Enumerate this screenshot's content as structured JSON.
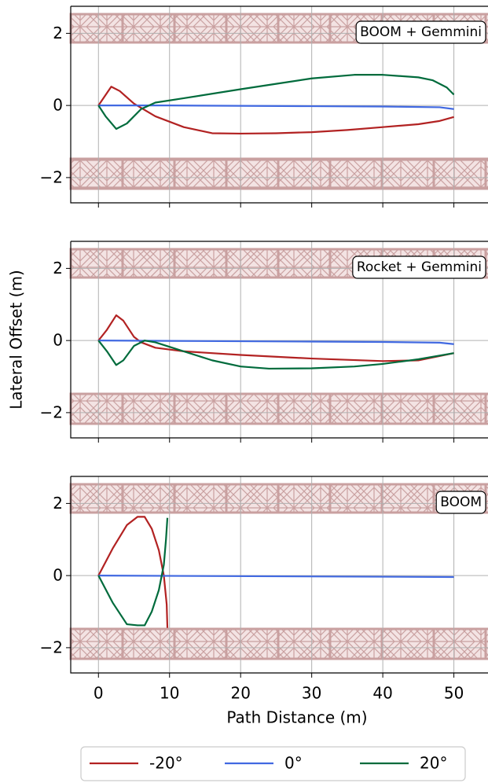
{
  "chart_data": [
    {
      "type": "line",
      "annotation": "BOOM + Gemmini",
      "xlim": [
        -3.9,
        54.8
      ],
      "ylim": [
        -2.7,
        2.75
      ],
      "xticks": [
        0,
        10,
        20,
        30,
        40,
        50
      ],
      "yticks": [
        {
          "value": -2,
          "label": "−2"
        },
        0,
        2
      ],
      "grid": true,
      "series": [
        {
          "name": "-20°",
          "color": "#b22222",
          "x": [
            0,
            1.8,
            3,
            5,
            8,
            12,
            16,
            20,
            25,
            30,
            35,
            40,
            45,
            48,
            50
          ],
          "values": [
            0,
            0.52,
            0.4,
            0.05,
            -0.3,
            -0.6,
            -0.77,
            -0.78,
            -0.77,
            -0.74,
            -0.68,
            -0.6,
            -0.52,
            -0.43,
            -0.32
          ]
        },
        {
          "name": "0°",
          "color": "#4169e1",
          "x": [
            0,
            10,
            20,
            30,
            40,
            48,
            50
          ],
          "values": [
            0,
            0,
            -0.01,
            -0.02,
            -0.03,
            -0.05,
            -0.1
          ]
        },
        {
          "name": "20°",
          "color": "#006b3c",
          "x": [
            0,
            1,
            2.5,
            4,
            6,
            8,
            12,
            20,
            25,
            30,
            36,
            40,
            45,
            47,
            49,
            50
          ],
          "values": [
            0,
            -0.3,
            -0.65,
            -0.5,
            -0.1,
            0.08,
            0.2,
            0.45,
            0.6,
            0.75,
            0.85,
            0.85,
            0.78,
            0.7,
            0.5,
            0.3
          ]
        }
      ]
    },
    {
      "type": "line",
      "annotation": "Rocket + Gemmini",
      "ylabel": "Lateral Offset (m)",
      "xlim": [
        -3.9,
        54.8
      ],
      "ylim": [
        -2.7,
        2.75
      ],
      "xticks": [
        0,
        10,
        20,
        30,
        40,
        50
      ],
      "yticks": [
        {
          "value": -2,
          "label": "−2"
        },
        0,
        2
      ],
      "grid": true,
      "series": [
        {
          "name": "-20°",
          "color": "#b22222",
          "x": [
            0,
            1.2,
            2.5,
            3.5,
            5,
            6,
            8,
            12,
            20,
            30,
            40,
            45,
            50
          ],
          "values": [
            0,
            0.3,
            0.7,
            0.55,
            0.1,
            -0.05,
            -0.2,
            -0.3,
            -0.4,
            -0.5,
            -0.57,
            -0.55,
            -0.35
          ]
        },
        {
          "name": "0°",
          "color": "#4169e1",
          "x": [
            0,
            10,
            20,
            30,
            40,
            48,
            50
          ],
          "values": [
            0,
            -0.01,
            -0.02,
            -0.03,
            -0.04,
            -0.06,
            -0.1
          ]
        },
        {
          "name": "20°",
          "color": "#006b3c",
          "x": [
            0,
            1.2,
            2.5,
            3.5,
            5,
            6.5,
            8,
            12,
            16,
            20,
            24,
            30,
            36,
            40,
            45,
            50
          ],
          "values": [
            0,
            -0.3,
            -0.68,
            -0.55,
            -0.15,
            0,
            -0.05,
            -0.3,
            -0.55,
            -0.72,
            -0.78,
            -0.77,
            -0.72,
            -0.65,
            -0.52,
            -0.35
          ]
        }
      ]
    },
    {
      "type": "line",
      "annotation": "BOOM",
      "xlabel": "Path Distance (m)",
      "xlim": [
        -3.9,
        54.8
      ],
      "ylim": [
        -2.7,
        2.75
      ],
      "xticks": [
        0,
        10,
        20,
        30,
        40,
        50
      ],
      "yticks": [
        {
          "value": -2,
          "label": "−2"
        },
        0,
        2
      ],
      "grid": true,
      "series": [
        {
          "name": "-20°",
          "color": "#b22222",
          "x": [
            0,
            2,
            4,
            5.5,
            6.5,
            7.5,
            8.5,
            9.2,
            9.6,
            9.7
          ],
          "values": [
            0,
            0.75,
            1.4,
            1.63,
            1.63,
            1.3,
            0.7,
            0,
            -0.8,
            -1.45
          ]
        },
        {
          "name": "0°",
          "color": "#4169e1",
          "x": [
            0,
            25,
            50
          ],
          "values": [
            0,
            -0.02,
            -0.04
          ]
        },
        {
          "name": "20°",
          "color": "#006b3c",
          "x": [
            0,
            2,
            4,
            5.5,
            6.5,
            7.5,
            8.5,
            9.2,
            9.5,
            9.7
          ],
          "values": [
            0,
            -0.75,
            -1.35,
            -1.38,
            -1.38,
            -1,
            -0.4,
            0.3,
            1,
            1.6
          ]
        }
      ]
    }
  ]
}
